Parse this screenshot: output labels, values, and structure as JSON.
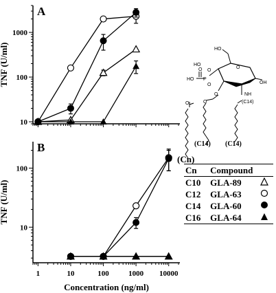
{
  "chart_data": [
    {
      "type": "line",
      "panel_label": "A",
      "ylabel": "TNF (U/ml)",
      "xscale": "log",
      "yscale": "log",
      "xlim": [
        0.7,
        22000
      ],
      "ylim": [
        9,
        4000
      ],
      "yticks": [
        10,
        100,
        1000
      ],
      "ytick_labels": [
        "10",
        "100",
        "1000"
      ],
      "series": [
        {
          "compound": "GLA-89",
          "marker": "open-triangle",
          "x": [
            1,
            10,
            100,
            1000
          ],
          "y": [
            10,
            11,
            125,
            420
          ],
          "err": [
            0,
            0,
            18,
            0
          ]
        },
        {
          "compound": "GLA-63",
          "marker": "open-circle",
          "x": [
            1,
            10,
            100,
            1000
          ],
          "y": [
            10,
            160,
            2000,
            2300
          ],
          "err": [
            0,
            0,
            0,
            700
          ]
        },
        {
          "compound": "GLA-60",
          "marker": "filled-circle",
          "x": [
            1,
            10,
            100,
            1000
          ],
          "y": [
            10,
            20,
            650,
            2800
          ],
          "err": [
            0,
            5,
            250,
            600
          ]
        },
        {
          "compound": "GLA-64",
          "marker": "filled-triangle",
          "x": [
            1,
            10,
            100,
            1000
          ],
          "y": [
            10,
            10,
            10,
            175
          ],
          "err": [
            0,
            0,
            0,
            55
          ]
        }
      ]
    },
    {
      "type": "line",
      "panel_label": "B",
      "ylabel": "TNF (U/ml)",
      "xlabel": "Concentration (ng/ml)",
      "xscale": "log",
      "yscale": "log",
      "xlim": [
        0.7,
        22000
      ],
      "ylim": [
        2.5,
        280
      ],
      "xticks": [
        1,
        10,
        100,
        1000,
        10000
      ],
      "xtick_labels": [
        "1",
        "10",
        "100",
        "1000",
        "10000"
      ],
      "yticks": [
        10,
        100
      ],
      "ytick_labels": [
        "10",
        "100"
      ],
      "series": [
        {
          "compound": "GLA-89",
          "marker": "open-triangle",
          "x": [
            10,
            100,
            1000,
            10000
          ],
          "y": [
            3.2,
            3.2,
            3.2,
            3.2
          ],
          "err": [
            0,
            0,
            0,
            0
          ]
        },
        {
          "compound": "GLA-63",
          "marker": "open-circle",
          "x": [
            10,
            100,
            1000,
            10000
          ],
          "y": [
            3.2,
            3.2,
            23,
            150
          ],
          "err": [
            0,
            0,
            0,
            60
          ]
        },
        {
          "compound": "GLA-60",
          "marker": "filled-circle",
          "x": [
            10,
            100,
            1000,
            10000
          ],
          "y": [
            3.2,
            3.2,
            12,
            145
          ],
          "err": [
            0,
            0,
            2.5,
            55
          ]
        },
        {
          "compound": "GLA-64",
          "marker": "filled-triangle",
          "x": [
            10,
            100,
            1000,
            10000
          ],
          "y": [
            3.2,
            3.2,
            3.2,
            3.2
          ],
          "err": [
            0,
            0,
            0,
            0
          ]
        }
      ]
    }
  ],
  "structure_labels": [
    "HO",
    "HO",
    "HO",
    "P",
    "O",
    "O",
    "O",
    "O",
    "O",
    "O",
    "O",
    "NH",
    "OH",
    "(C14)",
    "(C14)",
    "(Cn)"
  ],
  "legend": {
    "headers": [
      "Cn",
      "Compound"
    ],
    "rows": [
      {
        "cn": "C10",
        "compound": "GLA-89",
        "marker": "open-triangle"
      },
      {
        "cn": "C12",
        "compound": "GLA-63",
        "marker": "open-circle"
      },
      {
        "cn": "C14",
        "compound": "GLA-60",
        "marker": "filled-circle"
      },
      {
        "cn": "C16",
        "compound": "GLA-64",
        "marker": "filled-triangle"
      }
    ]
  }
}
